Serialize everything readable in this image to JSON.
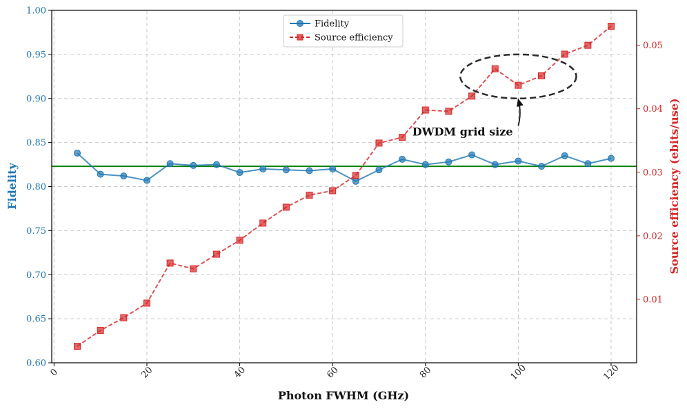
{
  "chart_data": {
    "type": "line",
    "title": "",
    "xlabel": "Photon FWHM (GHz)",
    "ylabel_left": "Fidelity",
    "ylabel_right": "Source efficiency (ebits/use)",
    "xlim": [
      -0.5,
      125.5
    ],
    "ylim_left": [
      0.6,
      1.0
    ],
    "ylim_right": [
      0.0,
      0.0555
    ],
    "x_ticks": [
      "0",
      "20",
      "40",
      "60",
      "80",
      "100",
      "120"
    ],
    "y_left_ticks": [
      "0.60",
      "0.65",
      "0.70",
      "0.75",
      "0.80",
      "0.85",
      "0.90",
      "0.95",
      "1.00"
    ],
    "y_right_ticks": [
      "0.01",
      "0.02",
      "0.03",
      "0.04",
      "0.05"
    ],
    "grid": true,
    "legend_position": "top-center",
    "x": [
      5,
      10,
      15,
      20,
      25,
      30,
      35,
      40,
      45,
      50,
      55,
      60,
      65,
      70,
      75,
      80,
      85,
      90,
      95,
      100,
      105,
      110,
      115,
      120
    ],
    "series": [
      {
        "name": "Fidelity",
        "axis": "left",
        "color": "#1f77b4",
        "marker": "circle",
        "line_style": "solid",
        "values": [
          0.838,
          0.814,
          0.812,
          0.807,
          0.826,
          0.824,
          0.825,
          0.816,
          0.82,
          0.819,
          0.818,
          0.82,
          0.806,
          0.819,
          0.831,
          0.825,
          0.828,
          0.836,
          0.825,
          0.829,
          0.823,
          0.835,
          0.826,
          0.832
        ]
      },
      {
        "name": "Source efficiency",
        "axis": "right",
        "color": "#d62728",
        "marker": "square",
        "line_style": "dashed",
        "values": [
          0.0026,
          0.0051,
          0.0071,
          0.0094,
          0.0157,
          0.0148,
          0.0171,
          0.0193,
          0.022,
          0.0245,
          0.0264,
          0.0271,
          0.0295,
          0.0346,
          0.0355,
          0.0398,
          0.0396,
          0.042,
          0.0463,
          0.0437,
          0.0452,
          0.0486,
          0.05,
          0.053
        ]
      }
    ],
    "reference_line": {
      "axis": "left",
      "value": 0.823,
      "color": "#008000"
    },
    "annotation": {
      "text": "DWDM grid size",
      "ellipse_center": [
        100,
        0.925
      ],
      "ellipse_radius": [
        12.5,
        0.025
      ],
      "text_anchor": [
        88,
        0.858
      ],
      "arrow_from": [
        100,
        0.869
      ],
      "arrow_to": [
        100,
        0.899
      ]
    }
  }
}
